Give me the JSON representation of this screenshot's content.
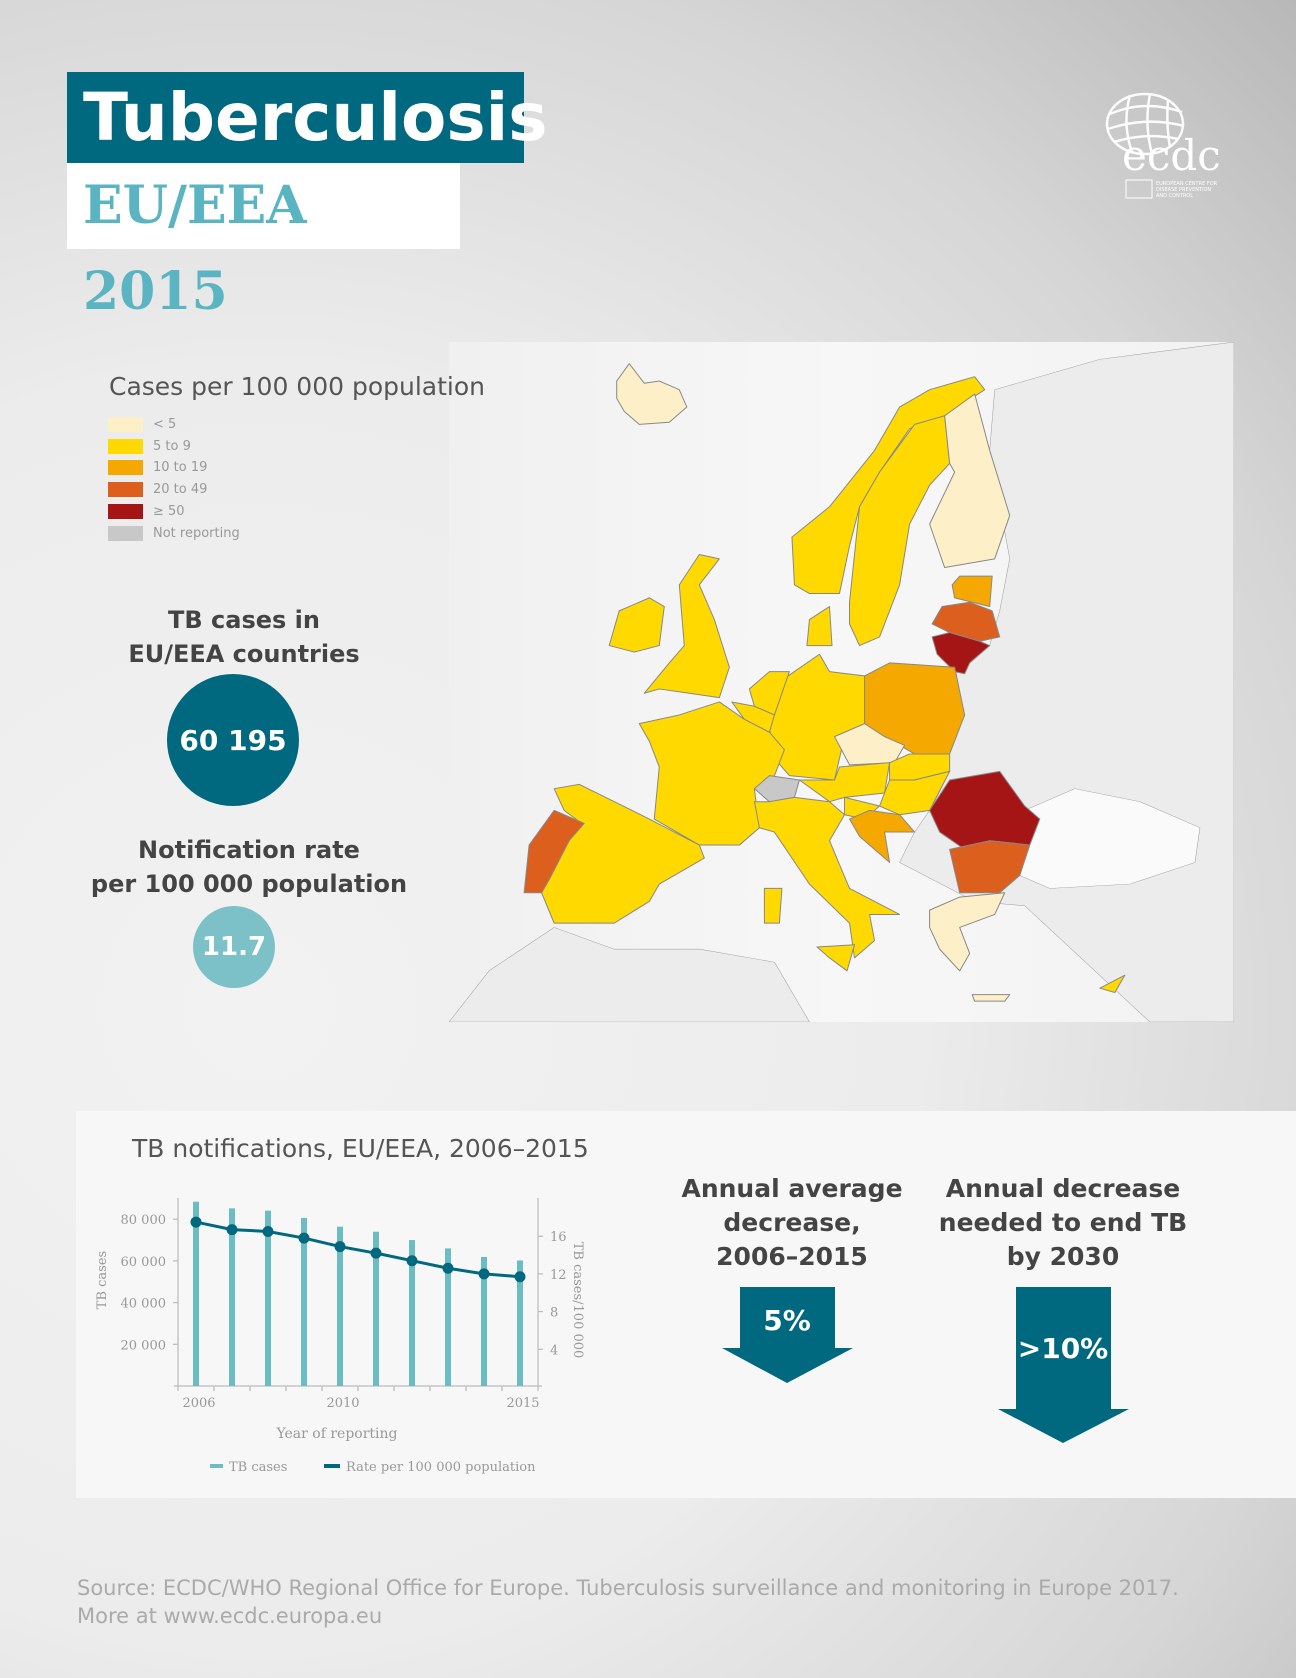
{
  "header": {
    "title": "Tuberculosis",
    "subtitle": "EU/EEA 2015"
  },
  "logo": {
    "text": "ecdc",
    "tagline": [
      "EUROPEAN CENTRE FOR",
      "DISEASE PREVENTION",
      "AND CONTROL"
    ]
  },
  "map": {
    "legend_title": "Cases per 100 000 population",
    "legend": [
      {
        "label": "< 5",
        "color": "#fdf0c8"
      },
      {
        "label": "5 to 9",
        "color": "#ffd900"
      },
      {
        "label": "10 to 19",
        "color": "#f5a800"
      },
      {
        "label": "20 to 49",
        "color": "#dc5f1e"
      },
      {
        "label": "≥ 50",
        "color": "#a51515"
      },
      {
        "label": "Not reporting",
        "color": "#c8c8c8"
      }
    ]
  },
  "stats": {
    "cases_label_1": "TB cases in",
    "cases_label_2": "EU/EEA countries",
    "cases_value": "60 195",
    "rate_label_1": "Notification rate",
    "rate_label_2": "per 100 000 population",
    "rate_value": "11.7"
  },
  "chart_data": {
    "type": "bar+line",
    "title": "TB notifications, EU/EEA, 2006–2015",
    "xlabel": "Year of reporting",
    "ylabel": "TB cases",
    "y2label": "TB cases/100 000",
    "x": [
      2006,
      2007,
      2008,
      2009,
      2010,
      2011,
      2012,
      2013,
      2014,
      2015
    ],
    "x_ticks": [
      "2006",
      "2010",
      "2015"
    ],
    "y_ticks": [
      "20 000",
      "40 000",
      "60 000",
      "80 000"
    ],
    "y2_ticks": [
      "4",
      "8",
      "12",
      "16"
    ],
    "series": [
      {
        "name": "TB cases",
        "type": "bar",
        "color": "#6cbcc4",
        "values": [
          88400,
          85200,
          84100,
          80600,
          76400,
          74000,
          70000,
          66000,
          61900,
          60195
        ]
      },
      {
        "name": "Rate per 100 000 population",
        "type": "line",
        "axis": "right",
        "color": "#00687f",
        "values": [
          17.5,
          16.7,
          16.5,
          15.8,
          14.9,
          14.2,
          13.4,
          12.6,
          12.0,
          11.7
        ]
      }
    ],
    "legend": "bottom"
  },
  "decrease": {
    "avg_lines": [
      "Annual average",
      "decrease,",
      "2006–2015"
    ],
    "avg_value": "5%",
    "needed_lines": [
      "Annual decrease",
      "needed to end TB",
      "by 2030"
    ],
    "needed_value": ">10%",
    "color": "#00687f"
  },
  "source": {
    "line1": "Source: ECDC/WHO Regional Office for Europe. Tuberculosis surveillance and monitoring in Europe 2017.",
    "line2": "More at www.ecdc.europa.eu"
  }
}
